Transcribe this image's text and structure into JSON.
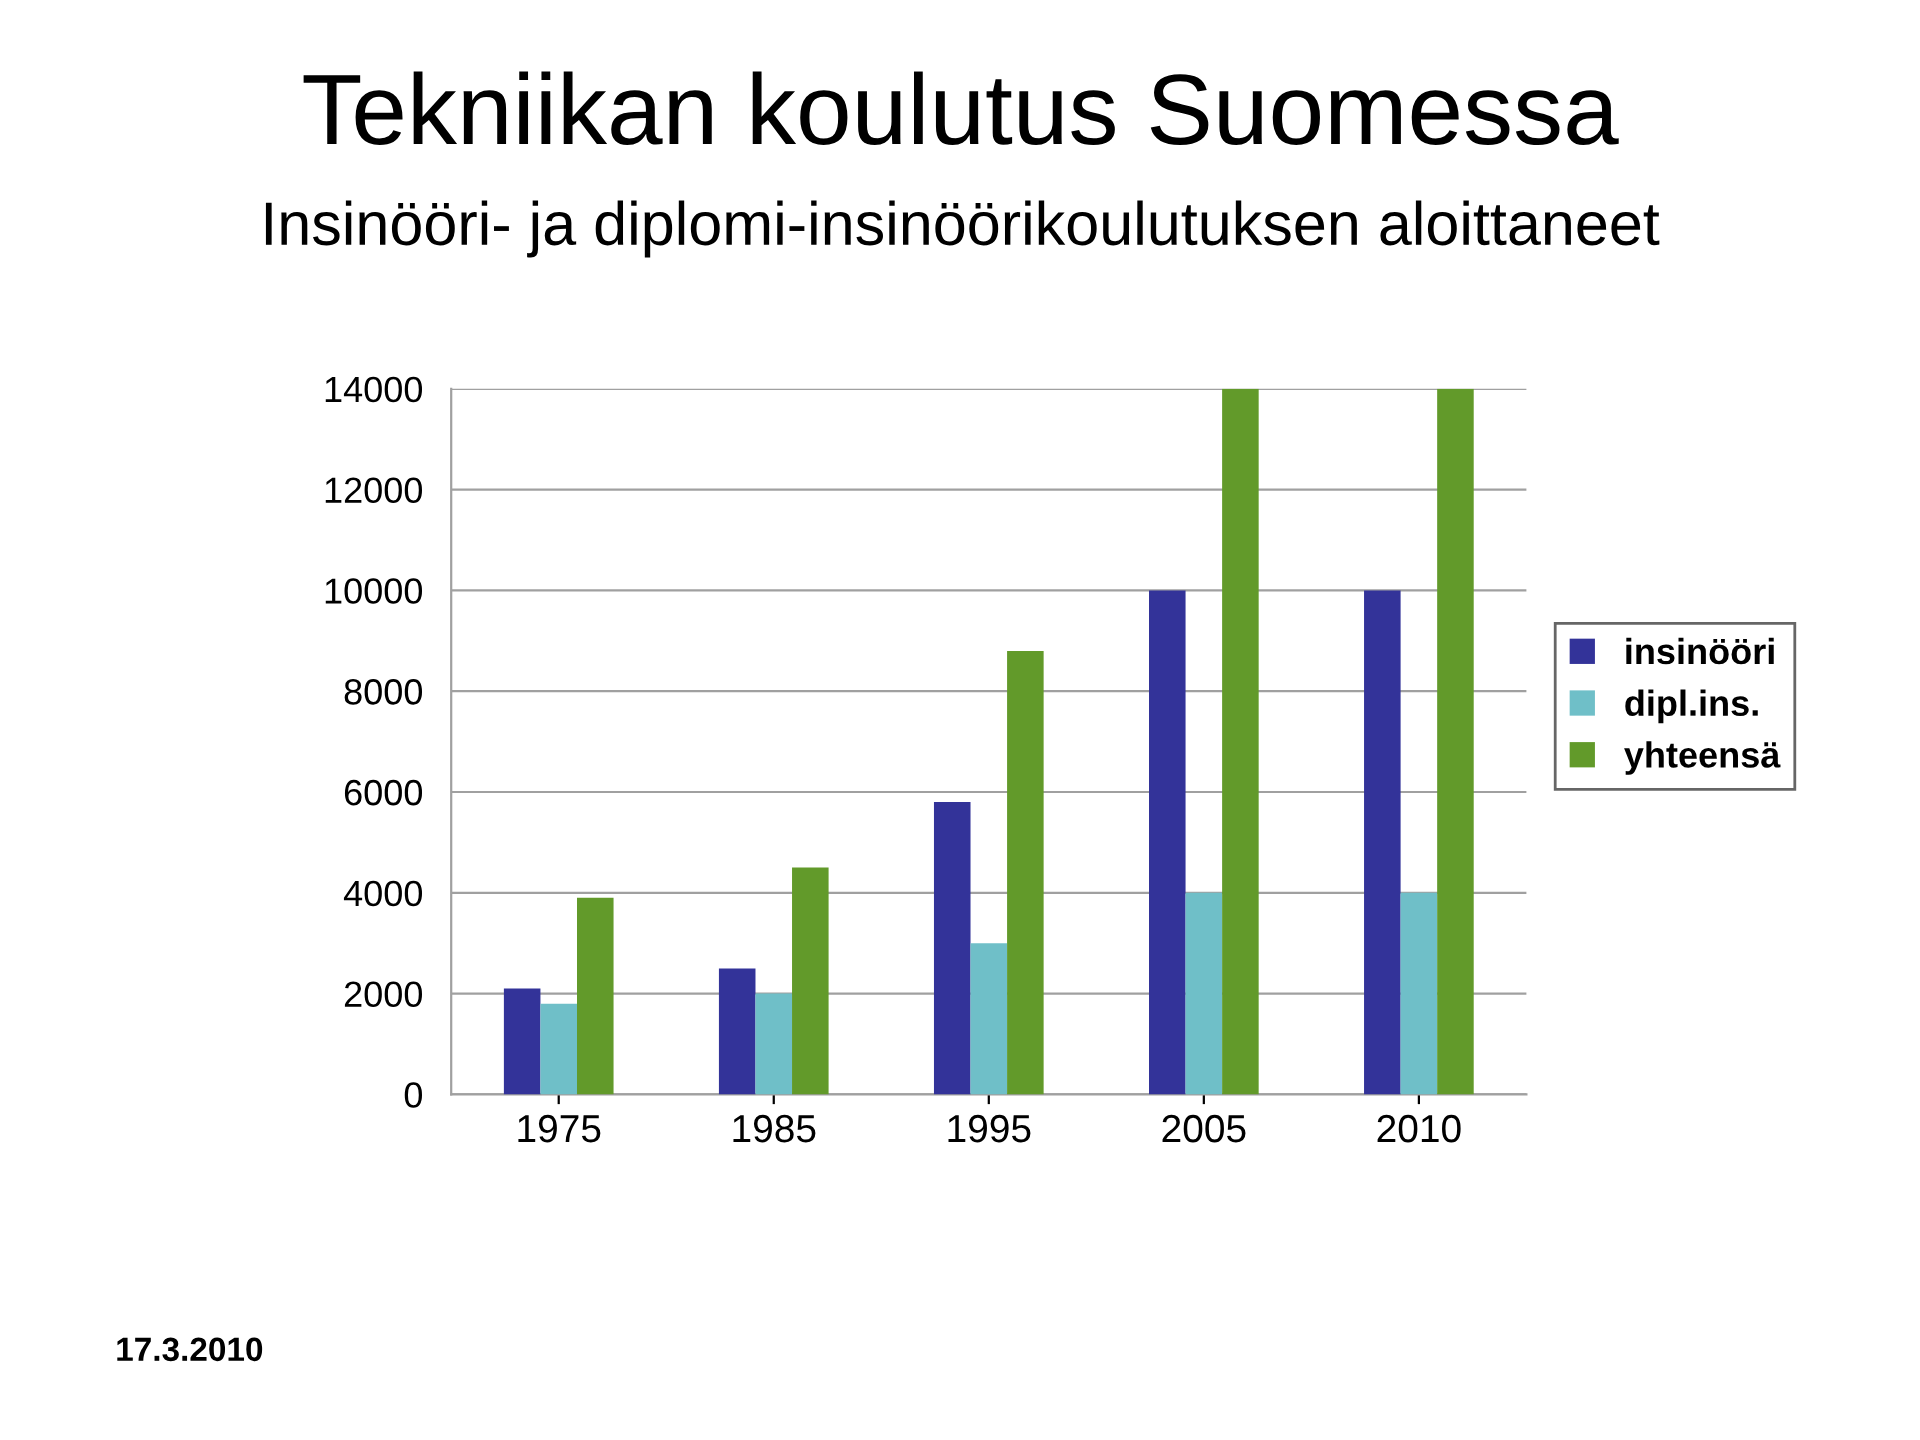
{
  "chart_data": {
    "type": "bar",
    "title": "Tekniikan koulutus Suomessa",
    "subtitle": "Insinööri- ja diplomi-insinöörikoulutuksen aloittaneet",
    "categories": [
      "1975",
      "1985",
      "1995",
      "2005",
      "2010"
    ],
    "series": [
      {
        "name": "insinööri",
        "color": "#333399",
        "values": [
          2100,
          2500,
          5800,
          10000,
          10000
        ]
      },
      {
        "name": "dipl.ins.",
        "color": "#6fbfc8",
        "values": [
          1800,
          2000,
          3000,
          4000,
          4000
        ]
      },
      {
        "name": "yhteensä",
        "color": "#629a2a",
        "values": [
          3900,
          4500,
          8800,
          14000,
          14000
        ]
      }
    ],
    "ylim": [
      0,
      14000
    ],
    "yticks": [
      0,
      2000,
      4000,
      6000,
      8000,
      10000,
      12000,
      14000
    ],
    "grid": "y",
    "legend": "right",
    "annotations": [
      "17.3.2010"
    ]
  }
}
